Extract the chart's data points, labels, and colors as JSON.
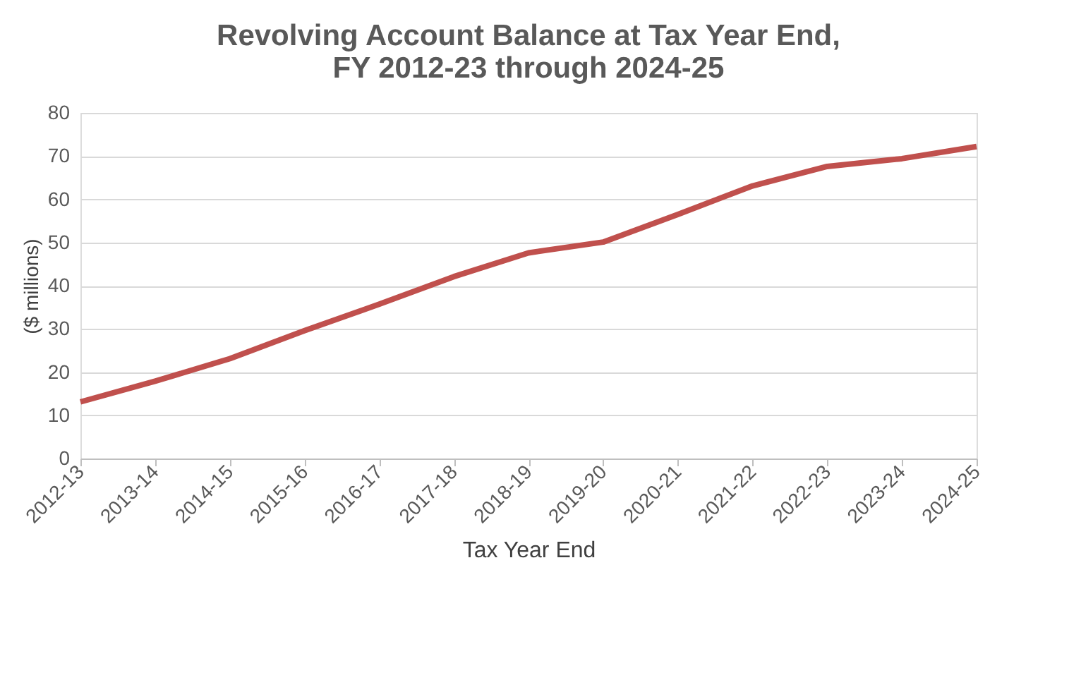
{
  "chart_data": {
    "type": "line",
    "title": "Revolving Account Balance at Tax Year End, FY 2012-23 through 2024-25",
    "xlabel": "Tax Year End",
    "ylabel": "($ millions)",
    "categories": [
      "2012-13",
      "2013-14",
      "2014-15",
      "2015-16",
      "2016-17",
      "2017-18",
      "2018-19",
      "2019-20",
      "2020-21",
      "2021-22",
      "2022-23",
      "2023-24",
      "2024-25"
    ],
    "series": [
      {
        "color": "#c0504d",
        "values": [
          13.1,
          17.9,
          23.1,
          29.6,
          35.7,
          42.1,
          47.6,
          50.1,
          56.5,
          63.1,
          67.6,
          69.4,
          72.2
        ]
      }
    ],
    "ylim": [
      0,
      80
    ],
    "yticks": [
      0,
      10,
      20,
      30,
      40,
      50,
      60,
      70,
      80
    ],
    "grid": "y",
    "marker": "none",
    "line_style": "solid"
  }
}
